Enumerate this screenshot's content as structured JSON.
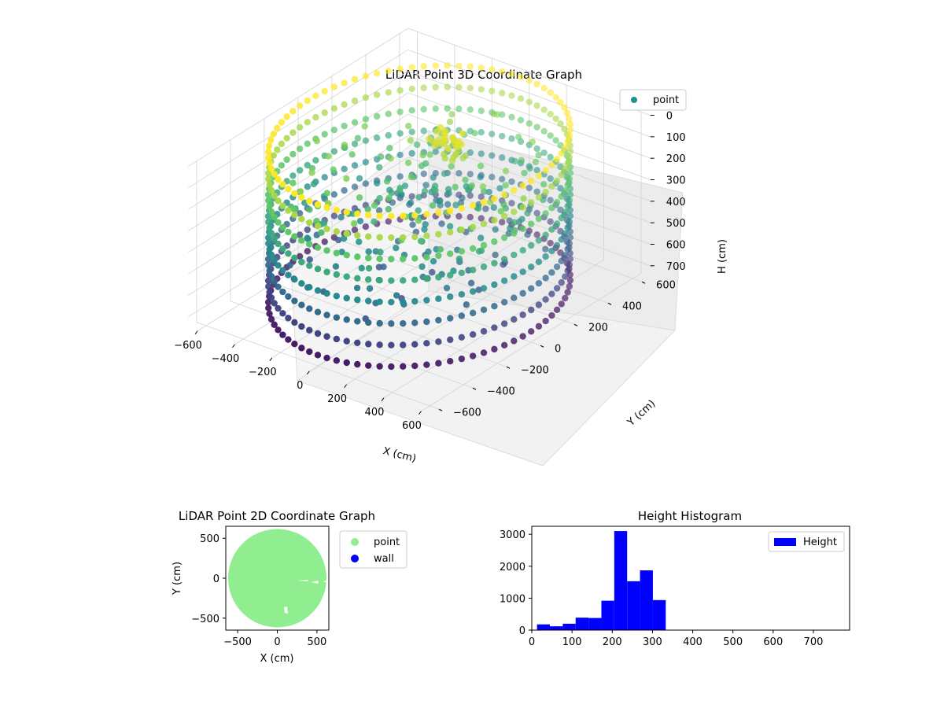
{
  "chart_data": [
    {
      "type": "scatter",
      "projection": "3d",
      "title": "LiDAR Point 3D Coordinate Graph",
      "xlabel": "X (cm)",
      "ylabel": "Y (cm)",
      "zlabel": "H (cm)",
      "xlim": [
        -650,
        650
      ],
      "ylim": [
        -650,
        650
      ],
      "zlim": [
        750,
        0
      ],
      "z_inverted": true,
      "xticks": [
        "−600",
        "−400",
        "−200",
        "0",
        "200",
        "400",
        "600"
      ],
      "yticks": [
        "−600",
        "−400",
        "−200",
        "0",
        "200",
        "400",
        "600"
      ],
      "zticks": [
        "0",
        "100",
        "200",
        "300",
        "400",
        "500",
        "600",
        "700"
      ],
      "legend": [
        {
          "label": "point",
          "color": "#21918c"
        }
      ],
      "legend_position": "upper-right",
      "colormap": "viridis",
      "wall_radius": 600,
      "wall_heights": [
        0,
        100,
        200,
        300,
        400,
        500,
        600,
        700
      ],
      "grid": true
    },
    {
      "type": "scatter",
      "title": "LiDAR Point 2D Coordinate Graph",
      "xlabel": "X (cm)",
      "ylabel": "Y (cm)",
      "xlim": [
        -650,
        650
      ],
      "ylim": [
        -650,
        650
      ],
      "xticks": [
        "−500",
        "0",
        "500"
      ],
      "yticks": [
        "500",
        "0",
        "−500"
      ],
      "series": [
        {
          "name": "point",
          "color": "#90ee90",
          "shape": "disk",
          "center": [
            0,
            0
          ],
          "radius": 620
        },
        {
          "name": "wall",
          "color": "#0000ff"
        }
      ],
      "legend_position": "outside-right"
    },
    {
      "type": "bar",
      "title": "Height Histogram",
      "xlim": [
        0,
        790
      ],
      "ylim": [
        0,
        3250
      ],
      "xticks": [
        "0",
        "100",
        "200",
        "300",
        "400",
        "500",
        "600",
        "700"
      ],
      "yticks": [
        "0",
        "1000",
        "2000",
        "3000"
      ],
      "bin_width": 32,
      "bins": [
        13,
        45,
        77,
        109,
        141,
        173,
        205,
        237,
        269,
        301
      ],
      "values": [
        180,
        120,
        200,
        390,
        380,
        920,
        3100,
        1530,
        1870,
        940
      ],
      "series": [
        {
          "name": "Height",
          "color": "#0000ff"
        }
      ],
      "legend_position": "upper-right"
    }
  ]
}
